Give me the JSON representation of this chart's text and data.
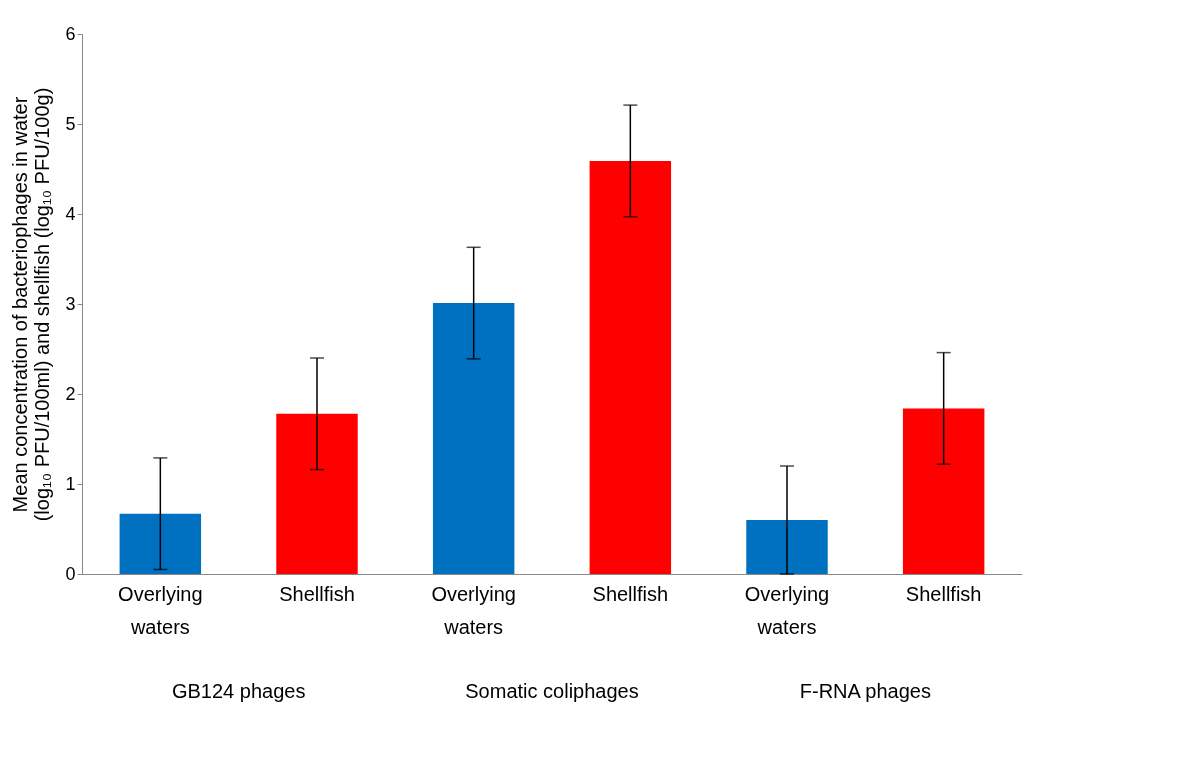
{
  "chart_data": {
    "type": "bar",
    "ylabel": "Mean concentration of bacteriophages in water (log₁₀ PFU/100ml) and shellfish (log₁₀ PFU/100g)",
    "categories": [
      "Overlying waters",
      "Shellfish",
      "Overlying waters",
      "Shellfish",
      "Overlying waters",
      "Shellfish"
    ],
    "values": [
      0.67,
      1.78,
      3.01,
      4.59,
      0.6,
      1.84
    ],
    "errors": [
      0.62,
      0.62,
      0.62,
      0.62,
      0.6,
      0.62
    ],
    "colors": [
      "#0070c0",
      "#ff0000",
      "#0070c0",
      "#ff0000",
      "#0070c0",
      "#ff0000"
    ],
    "annotations": [
      "GB124 phages",
      "Somatic coliphages",
      "F-RNA phages"
    ],
    "ylim": [
      0,
      6
    ],
    "yticks": [
      0,
      1,
      2,
      3,
      4,
      5,
      6
    ],
    "grid": false
  }
}
